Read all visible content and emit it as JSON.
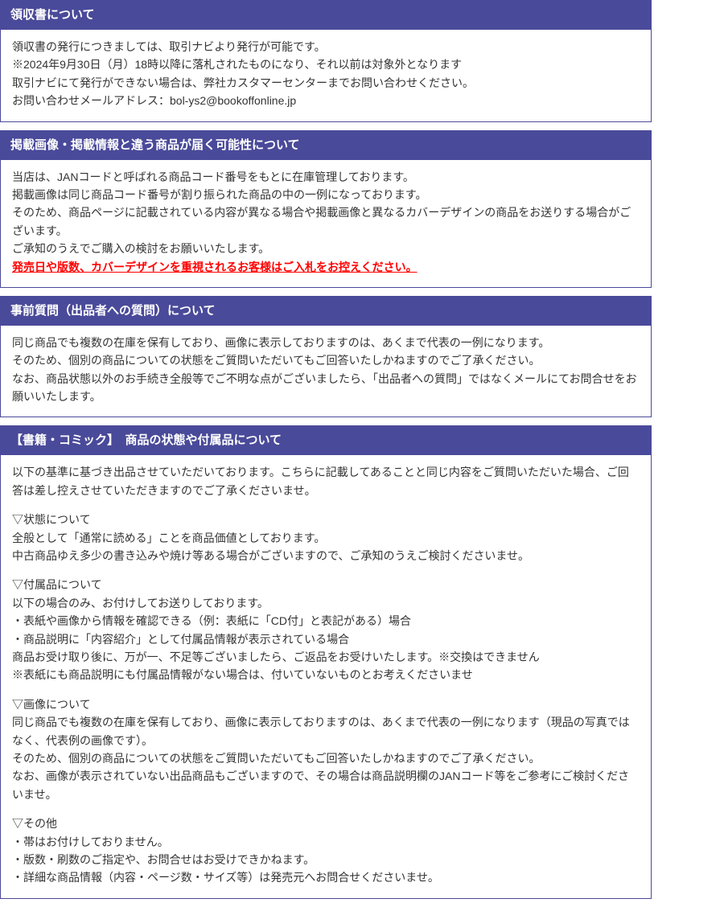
{
  "colors": {
    "header_bg": "#4a4a9a",
    "header_text": "#ffffff",
    "body_text": "#333333",
    "highlight": "#ff0000",
    "border": "#4a4a9a"
  },
  "sections": [
    {
      "title": "領収書について",
      "paragraphs": [
        {
          "text": "領収書の発行につきましては、取引ナビより発行が可能です。",
          "style": "normal"
        },
        {
          "text": "※2024年9月30日（月）18時以降に落札されたものになり、それ以前は対象外となります",
          "style": "normal"
        },
        {
          "text": "取引ナビにて発行ができない場合は、弊社カスタマーセンターまでお問い合わせください。",
          "style": "normal"
        },
        {
          "text": "お問い合わせメールアドレス：bol-ys2@bookoffonline.jp",
          "style": "normal"
        }
      ]
    },
    {
      "title": "掲載画像・掲載情報と違う商品が届く可能性について",
      "paragraphs": [
        {
          "text": "当店は、JANコードと呼ばれる商品コード番号をもとに在庫管理しております。",
          "style": "normal"
        },
        {
          "text": "掲載画像は同じ商品コード番号が割り振られた商品の中の一例になっております。",
          "style": "normal"
        },
        {
          "text": "そのため、商品ページに記載されている内容が異なる場合や掲載画像と異なるカバーデザインの商品をお送りする場合がございます。",
          "style": "normal"
        },
        {
          "text": "ご承知のうえでご購入の検討をお願いいたします。",
          "style": "normal"
        },
        {
          "text": "発売日や版数、カバーデザインを重視されるお客様はご入札をお控えください。",
          "style": "red-bold"
        }
      ]
    },
    {
      "title": "事前質問（出品者への質問）について",
      "paragraphs": [
        {
          "text": "同じ商品でも複数の在庫を保有しており、画像に表示しておりますのは、あくまで代表の一例になります。",
          "style": "normal"
        },
        {
          "text": "そのため、個別の商品についての状態をご質問いただいてもご回答いたしかねますのでご了承ください。",
          "style": "normal"
        },
        {
          "text": "なお、商品状態以外のお手続き全般等でご不明な点がございましたら、「出品者への質問」ではなくメールにてお問合せをお願いいたします。",
          "style": "normal"
        }
      ]
    },
    {
      "title": "【書籍・コミック】　商品の状態や付属品について",
      "paragraphs": [
        {
          "text": "以下の基準に基づき出品させていただいております。こちらに記載してあることと同じ内容をご質問いただいた場合、ご回答は差し控えさせていただきますのでご了承くださいませ。",
          "style": "normal"
        },
        {
          "text": "",
          "style": "spacer"
        },
        {
          "text": "▽状態について",
          "style": "normal"
        },
        {
          "text": "全般として「通常に読める」ことを商品価値としております。",
          "style": "normal"
        },
        {
          "text": "中古商品ゆえ多少の書き込みや焼け等ある場合がございますので、ご承知のうえご検討くださいませ。",
          "style": "normal"
        },
        {
          "text": "",
          "style": "spacer"
        },
        {
          "text": "▽付属品について",
          "style": "normal"
        },
        {
          "text": "以下の場合のみ、お付けしてお送りしております。",
          "style": "normal"
        },
        {
          "text": "・表紙や画像から情報を確認できる（例：表紙に「CD付」と表記がある）場合",
          "style": "normal"
        },
        {
          "text": "・商品説明に「内容紹介」として付属品情報が表示されている場合",
          "style": "normal"
        },
        {
          "text": "商品お受け取り後に、万が一、不足等ございましたら、ご返品をお受けいたします。※交換はできません",
          "style": "normal"
        },
        {
          "text": "※表紙にも商品説明にも付属品情報がない場合は、付いていないものとお考えくださいませ",
          "style": "normal"
        },
        {
          "text": "",
          "style": "spacer"
        },
        {
          "text": "▽画像について",
          "style": "normal"
        },
        {
          "text": "同じ商品でも複数の在庫を保有しており、画像に表示しておりますのは、あくまで代表の一例になります（現品の写真ではなく、代表例の画像です）。",
          "style": "normal"
        },
        {
          "text": "そのため、個別の商品についての状態をご質問いただいてもご回答いたしかねますのでご了承ください。",
          "style": "normal"
        },
        {
          "text": "なお、画像が表示されていない出品商品もございますので、その場合は商品説明欄のJANコード等をご参考にご検討くださいませ。",
          "style": "normal"
        },
        {
          "text": "",
          "style": "spacer"
        },
        {
          "text": "▽その他",
          "style": "normal"
        },
        {
          "text": "・帯はお付けしておりません。",
          "style": "normal"
        },
        {
          "text": "・版数・刷数のご指定や、お問合せはお受けできかねます。",
          "style": "normal"
        },
        {
          "text": "・詳細な商品情報（内容・ページ数・サイズ等）は発売元へお問合せくださいませ。",
          "style": "normal"
        }
      ]
    }
  ]
}
